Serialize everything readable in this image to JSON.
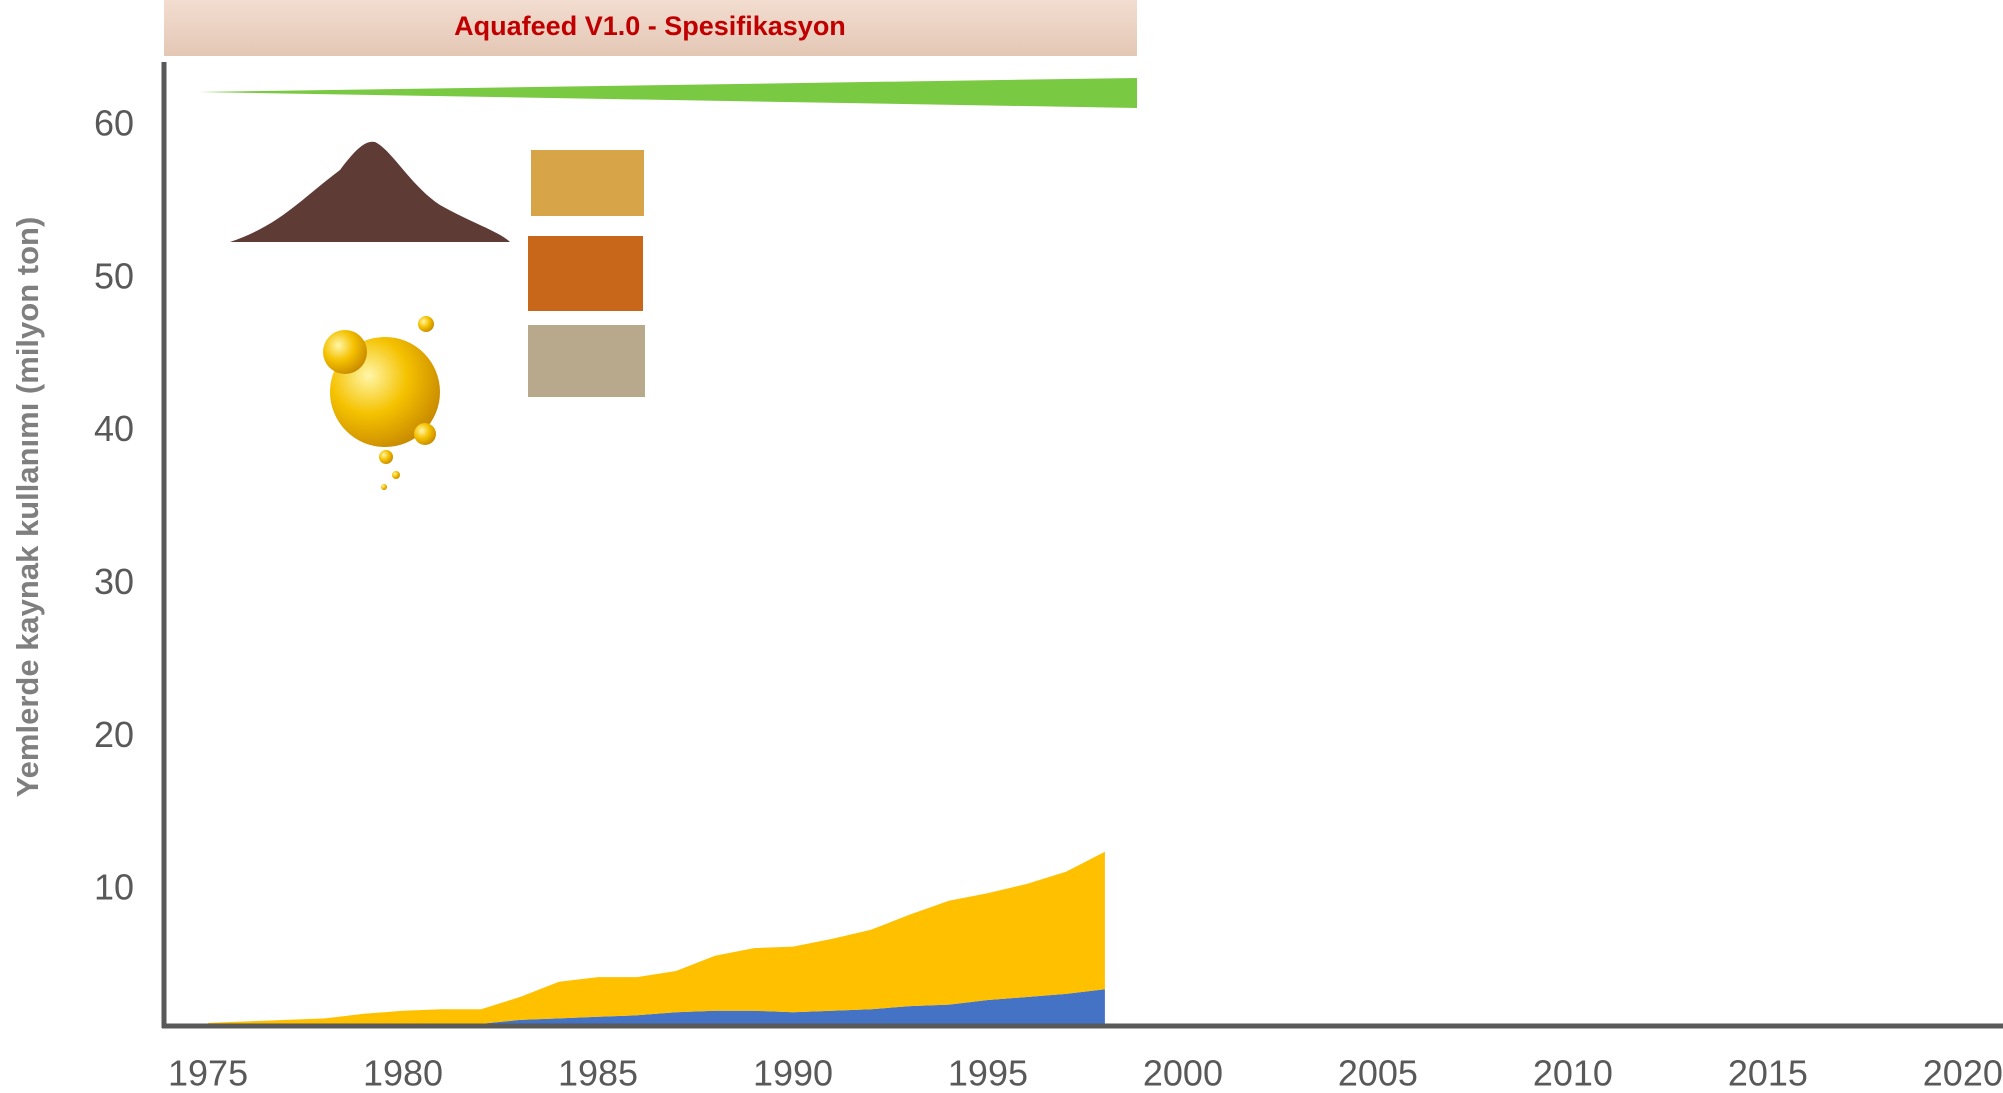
{
  "chart_data": {
    "type": "area",
    "title": "Aquafeed V1.0 - Spesifikasyon",
    "y_label": "Yemlerde kaynak kullanımı (milyon ton)",
    "x": [
      1975,
      1976,
      1977,
      1978,
      1979,
      1980,
      1981,
      1982,
      1983,
      1984,
      1985,
      1986,
      1987,
      1988,
      1989,
      1990,
      1991,
      1992,
      1993,
      1994,
      1995,
      1996,
      1997,
      1998
    ],
    "series": [
      {
        "color": "#4472c4",
        "values": [
          1.1,
          1.1,
          1.1,
          1.1,
          1.15,
          1.2,
          1.2,
          1.25,
          1.5,
          1.6,
          1.7,
          1.8,
          2.0,
          2.1,
          2.1,
          2.0,
          2.1,
          2.2,
          2.4,
          2.5,
          2.8,
          3.0,
          3.2,
          3.5
        ]
      },
      {
        "color": "#ffc000",
        "values": [
          0.2,
          0.3,
          0.4,
          0.5,
          0.75,
          0.9,
          1.0,
          0.95,
          1.5,
          2.4,
          2.6,
          2.5,
          2.7,
          3.6,
          4.1,
          4.3,
          4.7,
          5.2,
          6.0,
          6.8,
          7.0,
          7.4,
          8.0,
          9.0
        ]
      }
    ],
    "stacked": true,
    "xlim": [
      1973.87,
      2021.03
    ],
    "xticks": [
      1975,
      1980,
      1985,
      1990,
      1995,
      2000,
      2005,
      2010,
      2015,
      2020
    ],
    "ylim": [
      1.1,
      64.2
    ],
    "yticks": [
      10,
      20,
      30,
      40,
      50,
      60
    ]
  }
}
